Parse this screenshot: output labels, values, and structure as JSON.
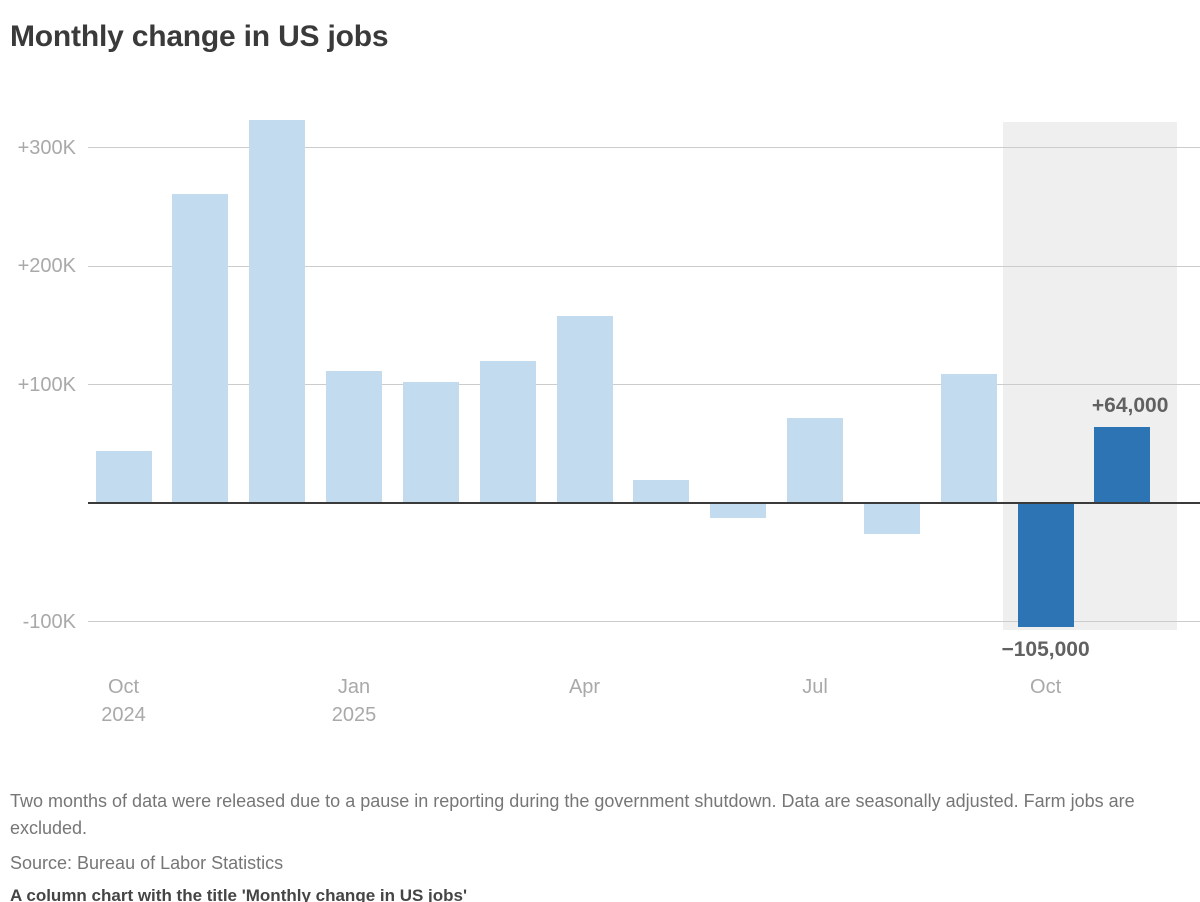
{
  "title": "Monthly change in US jobs",
  "chart_data": {
    "type": "bar",
    "title": "Monthly change in US jobs",
    "unit": "jobs (thousands)",
    "categories": [
      "Oct 2024",
      "Nov 2024",
      "Dec 2024",
      "Jan 2025",
      "Feb 2025",
      "Mar 2025",
      "Apr 2025",
      "May 2025",
      "Jun 2025",
      "Jul 2025",
      "Aug 2025",
      "Sep 2025",
      "Oct 2025",
      "Nov 2025"
    ],
    "values": [
      44,
      261,
      323,
      111,
      102,
      120,
      158,
      19,
      -13,
      72,
      -26,
      109,
      -105,
      64
    ],
    "highlighted": [
      false,
      false,
      false,
      false,
      false,
      false,
      false,
      false,
      false,
      false,
      false,
      false,
      true,
      true
    ],
    "xlabel": "",
    "ylabel": "",
    "ylim": [
      -160,
      340
    ],
    "grid": true,
    "legend": false,
    "yticks": [
      {
        "label": "+300K",
        "value": 300
      },
      {
        "label": "+200K",
        "value": 200
      },
      {
        "label": "+100K",
        "value": 100
      },
      {
        "label": "-100K",
        "value": -100
      }
    ],
    "xticks": [
      {
        "index": 0,
        "label": "Oct",
        "sub": "2024"
      },
      {
        "index": 3,
        "label": "Jan",
        "sub": "2025"
      },
      {
        "index": 6,
        "label": "Apr",
        "sub": ""
      },
      {
        "index": 9,
        "label": "Jul",
        "sub": ""
      },
      {
        "index": 12,
        "label": "Oct",
        "sub": ""
      }
    ],
    "annotations": [
      {
        "text": "+64,000",
        "bar_index": 13,
        "position": "above-bar"
      },
      {
        "text": "−105,000",
        "bar_index": 12,
        "position": "below-bar"
      }
    ],
    "highlight_band_categories": [
      "Oct 2025",
      "Nov 2025"
    ],
    "colors": {
      "bar": "#c3dbee",
      "bar_highlight": "#2d74b5",
      "band": "#efefef",
      "gridline": "#cccccc",
      "zero_line": "#3a3a3a",
      "axis_label": "#a9a9a9",
      "annotation": "#616161"
    }
  },
  "footer": {
    "note": "Two months of data were released due to a pause in reporting during the government shutdown. Data are seasonally adjusted. Farm jobs are excluded.",
    "source": "Source: Bureau of Labor Statistics",
    "alt_text": "A column chart with the title 'Monthly change in US jobs'"
  }
}
